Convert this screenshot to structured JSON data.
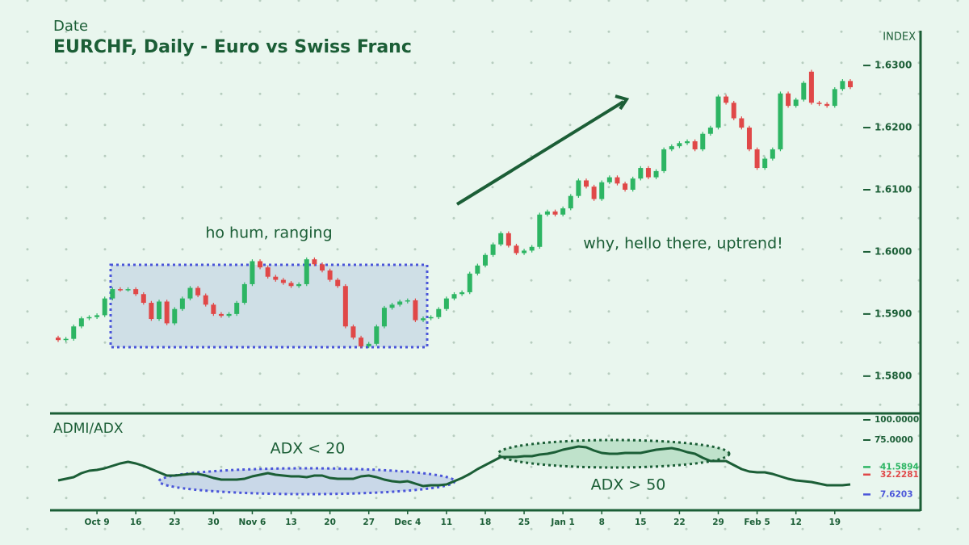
{
  "chart_data": [
    {
      "type": "candlestick",
      "xlabel": "Date",
      "title": "EURCHF, Daily - Euro vs Swiss Franc",
      "ylabel": "INDEX",
      "annotations": [
        "ho hum, ranging",
        "why, hello there, uptrend!"
      ],
      "up_color": "#2db563",
      "down_color": "#e04848",
      "categories": [
        null,
        null,
        null,
        null,
        null,
        "Oct 9",
        null,
        null,
        null,
        null,
        "16",
        null,
        null,
        null,
        null,
        "23",
        null,
        null,
        null,
        null,
        "30",
        null,
        null,
        null,
        null,
        "Nov 6",
        null,
        null,
        null,
        null,
        "13",
        null,
        null,
        null,
        null,
        "20",
        null,
        null,
        null,
        null,
        "27",
        null,
        null,
        null,
        null,
        "Dec 4",
        null,
        null,
        null,
        null,
        "11",
        null,
        null,
        null,
        null,
        "18",
        null,
        null,
        null,
        null,
        "25",
        null,
        null,
        null,
        null,
        "Jan 1",
        null,
        null,
        null,
        null,
        "8",
        null,
        null,
        null,
        null,
        "15",
        null,
        null,
        null,
        null,
        "22",
        null,
        null,
        null,
        null,
        "29",
        null,
        null,
        null,
        null,
        "Feb 5",
        null,
        null,
        null,
        null,
        "12",
        null,
        null,
        null,
        null,
        "19",
        null,
        null
      ],
      "open": [
        1.5862,
        1.5858,
        1.586,
        1.588,
        1.5893,
        1.5895,
        1.5898,
        1.5925,
        1.594,
        1.5939,
        1.594,
        1.5932,
        1.5918,
        1.5892,
        1.592,
        1.5885,
        1.5908,
        1.5925,
        1.5942,
        1.593,
        1.5915,
        1.59,
        1.5897,
        1.59,
        1.5918,
        1.5948,
        1.5985,
        1.5975,
        1.596,
        1.5955,
        1.595,
        1.5945,
        1.5948,
        1.5988,
        1.598,
        1.597,
        1.5955,
        1.5945,
        1.588,
        1.5862,
        1.5848,
        1.5852,
        1.588,
        1.591,
        1.5915,
        1.592,
        1.5922,
        1.589,
        1.5893,
        1.5895,
        1.5908,
        1.5925,
        1.5932,
        1.5935,
        1.5965,
        1.5978,
        1.5995,
        1.6012,
        1.603,
        1.601,
        1.5998,
        1.6002,
        1.6008,
        1.606,
        1.6065,
        1.606,
        1.607,
        1.609,
        1.6115,
        1.6105,
        1.6085,
        1.6112,
        1.612,
        1.611,
        1.61,
        1.6118,
        1.6135,
        1.612,
        1.613,
        1.6165,
        1.617,
        1.6175,
        1.6178,
        1.6165,
        1.619,
        1.62,
        1.625,
        1.624,
        1.6215,
        1.62,
        1.6165,
        1.6135,
        1.615,
        1.6165,
        1.6255,
        1.6235,
        1.6245,
        1.629,
        1.624,
        1.6238,
        1.6235,
        1.6262,
        1.6275
      ],
      "high": [
        1.5865,
        1.5863,
        1.5883,
        1.5896,
        1.5898,
        1.5901,
        1.5928,
        1.5943,
        1.5943,
        1.5943,
        1.5943,
        1.5935,
        1.5921,
        1.5923,
        1.5923,
        1.5911,
        1.5928,
        1.5945,
        1.5945,
        1.5933,
        1.5918,
        1.5903,
        1.5903,
        1.5921,
        1.5951,
        1.5988,
        1.5988,
        1.5978,
        1.5963,
        1.5958,
        1.5953,
        1.5951,
        1.5991,
        1.5991,
        1.5983,
        1.5973,
        1.5958,
        1.5948,
        1.5883,
        1.5865,
        1.5855,
        1.5883,
        1.5913,
        1.5918,
        1.5923,
        1.5925,
        1.5925,
        1.5896,
        1.5898,
        1.5911,
        1.5928,
        1.5935,
        1.5938,
        1.5968,
        1.5981,
        1.5998,
        1.6015,
        1.6033,
        1.6033,
        1.6013,
        1.6005,
        1.6011,
        1.6063,
        1.6068,
        1.6068,
        1.6073,
        1.6093,
        1.6118,
        1.6118,
        1.6108,
        1.6115,
        1.6123,
        1.6123,
        1.6113,
        1.6121,
        1.6138,
        1.6138,
        1.6133,
        1.6168,
        1.6173,
        1.6178,
        1.6181,
        1.6181,
        1.6193,
        1.6203,
        1.6253,
        1.6253,
        1.6243,
        1.6218,
        1.6203,
        1.6168,
        1.6153,
        1.6168,
        1.6258,
        1.6258,
        1.6248,
        1.6275,
        1.6293,
        1.6243,
        1.6241,
        1.6265,
        1.6278,
        1.6278
      ],
      "low": [
        1.5855,
        1.5855,
        1.5857,
        1.5877,
        1.589,
        1.5892,
        1.5895,
        1.5922,
        1.5936,
        1.5936,
        1.5929,
        1.5915,
        1.5889,
        1.5889,
        1.5882,
        1.5882,
        1.5905,
        1.5922,
        1.5927,
        1.5912,
        1.5897,
        1.5894,
        1.5894,
        1.5897,
        1.5915,
        1.5945,
        1.5972,
        1.5957,
        1.5952,
        1.5947,
        1.5942,
        1.5942,
        1.5945,
        1.5977,
        1.5967,
        1.5952,
        1.5942,
        1.5877,
        1.5859,
        1.5845,
        1.5845,
        1.5849,
        1.5877,
        1.5907,
        1.5912,
        1.5917,
        1.5887,
        1.5887,
        1.589,
        1.5892,
        1.5905,
        1.5922,
        1.5929,
        1.5932,
        1.5962,
        1.5975,
        1.5992,
        1.6009,
        1.6007,
        1.5995,
        1.5995,
        1.5999,
        1.6005,
        1.6057,
        1.6057,
        1.6057,
        1.6067,
        1.6087,
        1.6102,
        1.6082,
        1.6082,
        1.6109,
        1.6107,
        1.6097,
        1.6097,
        1.6115,
        1.6117,
        1.6117,
        1.6127,
        1.6162,
        1.6167,
        1.6172,
        1.6162,
        1.6162,
        1.6187,
        1.6197,
        1.6237,
        1.6212,
        1.6197,
        1.6162,
        1.6132,
        1.6132,
        1.6147,
        1.6162,
        1.6232,
        1.6232,
        1.6242,
        1.6237,
        1.6235,
        1.6232,
        1.6232,
        1.6259,
        1.6262
      ],
      "close": [
        1.5858,
        1.586,
        1.588,
        1.5893,
        1.5895,
        1.5898,
        1.5925,
        1.594,
        1.5939,
        1.594,
        1.5932,
        1.5918,
        1.5892,
        1.592,
        1.5885,
        1.5908,
        1.5925,
        1.5942,
        1.593,
        1.5915,
        1.59,
        1.5897,
        1.59,
        1.5918,
        1.5948,
        1.5985,
        1.5975,
        1.596,
        1.5955,
        1.595,
        1.5945,
        1.5948,
        1.5988,
        1.598,
        1.597,
        1.5955,
        1.5945,
        1.588,
        1.5862,
        1.5848,
        1.5852,
        1.588,
        1.591,
        1.5915,
        1.592,
        1.5922,
        1.589,
        1.5893,
        1.5895,
        1.5908,
        1.5925,
        1.5932,
        1.5935,
        1.5965,
        1.5978,
        1.5995,
        1.6012,
        1.603,
        1.601,
        1.5998,
        1.6002,
        1.6008,
        1.606,
        1.6065,
        1.606,
        1.607,
        1.609,
        1.6115,
        1.6105,
        1.6085,
        1.6112,
        1.612,
        1.611,
        1.61,
        1.6118,
        1.6135,
        1.612,
        1.613,
        1.6165,
        1.617,
        1.6175,
        1.6178,
        1.6165,
        1.619,
        1.62,
        1.625,
        1.624,
        1.6215,
        1.62,
        1.6165,
        1.6135,
        1.615,
        1.6165,
        1.6255,
        1.6235,
        1.6245,
        1.6272,
        1.624,
        1.6238,
        1.6235,
        1.6262,
        1.6275,
        1.6265
      ],
      "ylim": [
        1.574,
        1.6356
      ],
      "yticks": [
        {
          "value": 1.58,
          "label": "1.5800"
        },
        {
          "value": 1.59,
          "label": "1.5900"
        },
        {
          "value": 1.6,
          "label": "1.6000"
        },
        {
          "value": 1.61,
          "label": "1.6100"
        },
        {
          "value": 1.62,
          "label": "1.6200"
        },
        {
          "value": 1.63,
          "label": "1.6300"
        }
      ]
    },
    {
      "type": "line",
      "title": "ADMI/ADX",
      "annotations": [
        "ADX < 20",
        "ADX > 50"
      ],
      "color": "#1b5e36",
      "values": [
        25,
        27,
        29,
        34,
        37,
        38,
        40,
        43,
        46,
        48,
        46,
        43,
        39,
        35,
        31,
        31,
        32,
        33,
        33,
        31,
        28,
        26,
        26,
        26,
        27,
        30,
        32,
        34,
        32,
        31,
        30,
        30,
        29,
        31,
        31,
        28,
        27,
        27,
        27,
        30,
        31,
        29,
        26,
        24,
        23,
        24,
        21,
        18,
        19,
        19,
        20,
        24,
        28,
        33,
        39,
        44,
        49,
        54,
        54,
        54,
        55,
        55,
        57,
        58,
        60,
        63,
        65,
        67,
        66,
        62,
        59,
        58,
        58,
        59,
        59,
        59,
        61,
        63,
        64,
        65,
        63,
        60,
        58,
        53,
        49,
        49,
        49,
        44,
        39,
        36,
        35,
        35,
        33,
        30,
        27,
        25,
        24,
        23,
        21,
        19,
        19,
        19,
        20
      ],
      "ylim": [
        -12,
        108
      ],
      "yticks": [
        {
          "value": 75,
          "label": "75.0000"
        },
        {
          "value": 100,
          "label": "100.0000"
        }
      ],
      "markers": [
        {
          "value": 41.5894,
          "color": "#2db563"
        },
        {
          "value": 32.2281,
          "color": "#e04848"
        },
        {
          "value": 7.6203,
          "color": "#4a55d9"
        }
      ]
    }
  ]
}
